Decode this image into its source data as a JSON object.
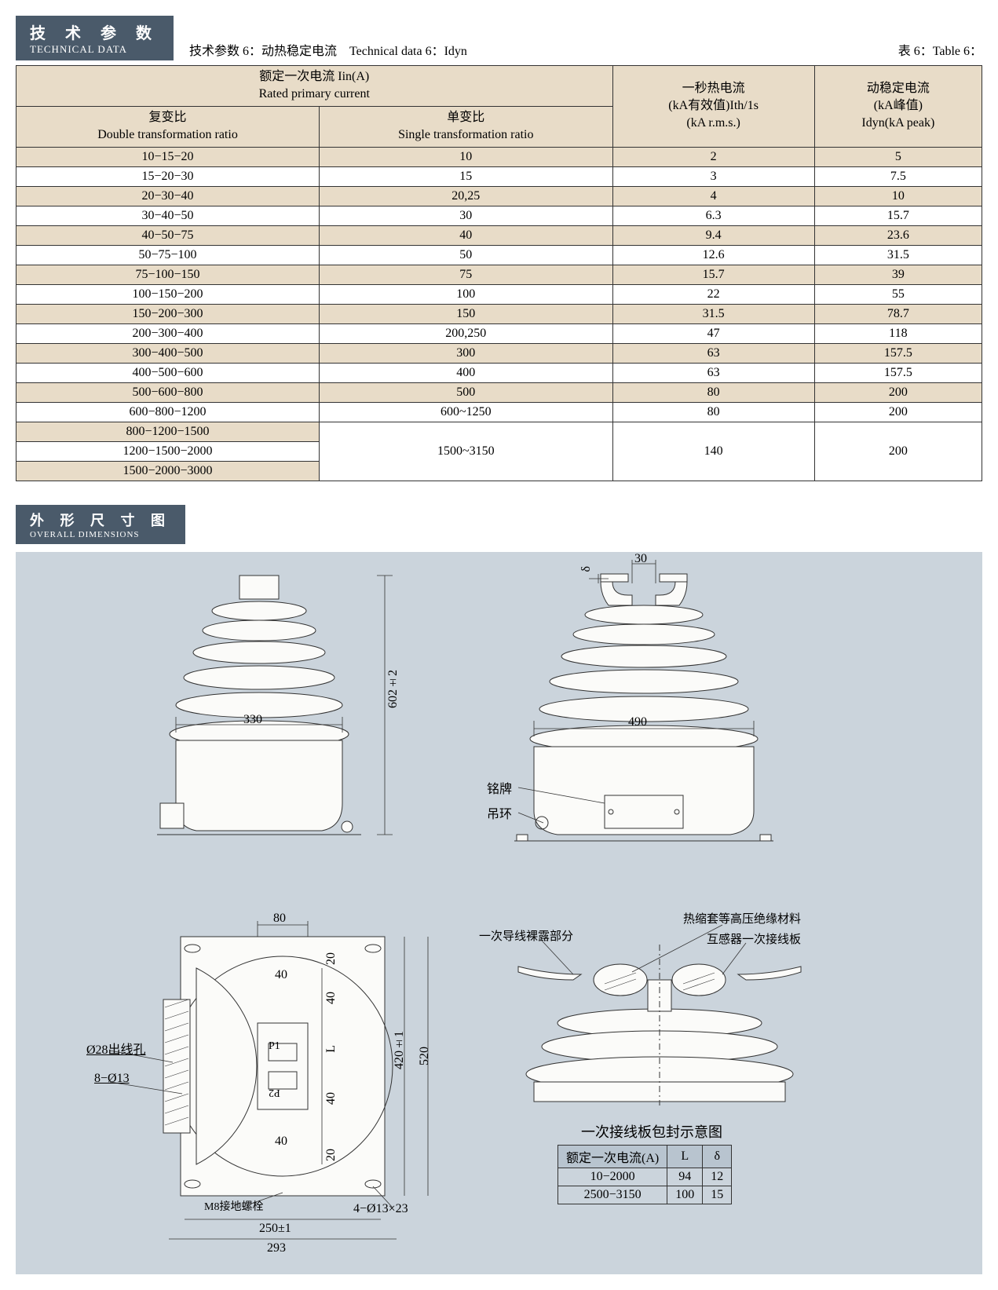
{
  "tech_header": {
    "cn": "技 术 参 数",
    "en": "TECHNICAL DATA"
  },
  "subtitle": "技术参数 6：动热稳定电流　Technical data 6：Idyn",
  "table_label": "表 6：Table 6：",
  "columns": {
    "primary": {
      "l1": "额定一次电流 Iin(A)",
      "l2": "Rated primary current"
    },
    "double": {
      "l1": "复变比",
      "l2": "Double transformation ratio"
    },
    "single": {
      "l1": "单变比",
      "l2": "Single transformation ratio"
    },
    "thermal": {
      "l1": "一秒热电流",
      "l2": "(kA有效值)Ith/1s",
      "l3": "(kA r.m.s.)"
    },
    "dynamic": {
      "l1": "动稳定电流",
      "l2": "(kA峰值)",
      "l3": "Idyn(kA peak)"
    }
  },
  "rows": [
    {
      "d": "10−15−20",
      "s": "10",
      "t": "2",
      "y": "5"
    },
    {
      "d": "15−20−30",
      "s": "15",
      "t": "3",
      "y": "7.5"
    },
    {
      "d": "20−30−40",
      "s": "20,25",
      "t": "4",
      "y": "10"
    },
    {
      "d": "30−40−50",
      "s": "30",
      "t": "6.3",
      "y": "15.7"
    },
    {
      "d": "40−50−75",
      "s": "40",
      "t": "9.4",
      "y": "23.6"
    },
    {
      "d": "50−75−100",
      "s": "50",
      "t": "12.6",
      "y": "31.5"
    },
    {
      "d": "75−100−150",
      "s": "75",
      "t": "15.7",
      "y": "39"
    },
    {
      "d": "100−150−200",
      "s": "100",
      "t": "22",
      "y": "55"
    },
    {
      "d": "150−200−300",
      "s": "150",
      "t": "31.5",
      "y": "78.7"
    },
    {
      "d": "200−300−400",
      "s": "200,250",
      "t": "47",
      "y": "118"
    },
    {
      "d": "300−400−500",
      "s": "300",
      "t": "63",
      "y": "157.5"
    },
    {
      "d": "400−500−600",
      "s": "400",
      "t": "63",
      "y": "157.5"
    },
    {
      "d": "500−600−800",
      "s": "500",
      "t": "80",
      "y": "200"
    },
    {
      "d": "600−800−1200",
      "s": "600~1250",
      "t": "80",
      "y": "200"
    }
  ],
  "merged_group": {
    "d": [
      "800−1200−1500",
      "1200−1500−2000",
      "1500−2000−3000"
    ],
    "s": "1500~3150",
    "t": "140",
    "y": "200"
  },
  "dims_header": {
    "cn": "外 形 尺 寸 图",
    "en": "OVERALL DIMENSIONS"
  },
  "labels": {
    "d330": "330",
    "d602": "602±2",
    "d490": "490",
    "mingpai": "铭牌",
    "diaohuan": "吊环",
    "d80": "80",
    "d40a": "40",
    "d40b": "40",
    "d40c": "40",
    "d40d": "40",
    "d20a": "20",
    "d20b": "20",
    "dL": "L",
    "d420": "420±1",
    "d520": "520",
    "d250": "250±1",
    "d293": "293",
    "c28": "Ø28出线孔",
    "c8_13": "8−Ø13",
    "m8": "M8接地螺栓",
    "c4_13": "4−Ø13×23",
    "d30": "30",
    "ddelta": "δ",
    "lead_exposed": "一次导线裸露部分",
    "heat_shrink": "热缩套等高压绝缘材料",
    "transformer_board": "互感器一次接线板",
    "wrap_title": "一次接线板包封示意图"
  },
  "mini": {
    "h1": "额定一次电流(A)",
    "h2": "L",
    "h3": "δ",
    "r1": {
      "a": "10−2000",
      "l": "94",
      "d": "12"
    },
    "r2": {
      "a": "2500−3150",
      "l": "100",
      "d": "15"
    }
  },
  "colors": {
    "header_bg": "#4a5a6a",
    "row_alt": "#e8dcc8",
    "panel_bg": "#cbd4dc",
    "shape_fill": "#fbfbf9",
    "line": "#333333"
  }
}
